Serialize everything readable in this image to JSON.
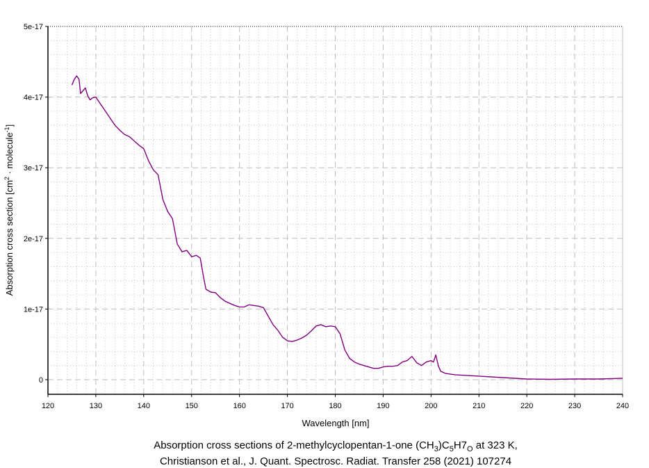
{
  "chart_data": {
    "type": "line",
    "title_line1": [
      "Absorption cross sections of 2-methylcyclopentan-1-one (CH",
      "3",
      ")C",
      "5",
      "H7",
      "O",
      " at 323 K,"
    ],
    "title_line2": "Christianson et al., J. Quant. Spectrosc. Radiat. Transfer 258 (2021) 107274",
    "xlabel": "Wavelength [nm]",
    "ylabel_parts": [
      "Absorption cross section [cm",
      "2",
      " · molecule",
      "-1",
      "]"
    ],
    "xlim": [
      120,
      240
    ],
    "ylim": [
      -2e-18,
      5e-17
    ],
    "xticks": [
      120,
      130,
      140,
      150,
      160,
      170,
      180,
      190,
      200,
      210,
      220,
      230,
      240
    ],
    "xtick_labels": [
      "120",
      "130",
      "140",
      "150",
      "160",
      "170",
      "180",
      "190",
      "200",
      "210",
      "220",
      "230",
      "240"
    ],
    "yticks": [
      0,
      1e-17,
      2e-17,
      3e-17,
      4e-17,
      5e-17
    ],
    "ytick_labels": [
      "0",
      "1e-17",
      "2e-17",
      "3e-17",
      "4e-17",
      "5e-17"
    ],
    "grid": true,
    "line_color": "#800080",
    "series": [
      {
        "name": "2-methylcyclopentan-1-one 323 K",
        "x": [
          125.0,
          125.5,
          126.0,
          126.5,
          126.8,
          127.2,
          127.8,
          128.3,
          128.8,
          129.3,
          130,
          131,
          132,
          133,
          134,
          135,
          136,
          137,
          138,
          139,
          140,
          141,
          142,
          143,
          144,
          145,
          146,
          147,
          148,
          149,
          150,
          151,
          151.8,
          152.5,
          153,
          154,
          155,
          156,
          157,
          158,
          159,
          160,
          161,
          162,
          163,
          164,
          165,
          166,
          167,
          168,
          169,
          170,
          171,
          172,
          173,
          174,
          175,
          176,
          177,
          178,
          179,
          180,
          181,
          182,
          183,
          184,
          185,
          186,
          187,
          188,
          189,
          190,
          191,
          192,
          193,
          194,
          195,
          196,
          197,
          198,
          199,
          200,
          200.5,
          201,
          201.5,
          202,
          203,
          205,
          210,
          215,
          220,
          225,
          230,
          235,
          240
        ],
        "y": [
          4.17e-17,
          4.25e-17,
          4.3e-17,
          4.25e-17,
          4.05e-17,
          4.08e-17,
          4.13e-17,
          4.02e-17,
          3.96e-17,
          3.99e-17,
          4e-17,
          3.9e-17,
          3.8e-17,
          3.7e-17,
          3.6e-17,
          3.53e-17,
          3.47e-17,
          3.44e-17,
          3.38e-17,
          3.32e-17,
          3.27e-17,
          3.1e-17,
          2.97e-17,
          2.9e-17,
          2.55e-17,
          2.38e-17,
          2.28e-17,
          1.92e-17,
          1.81e-17,
          1.83e-17,
          1.74e-17,
          1.76e-17,
          1.72e-17,
          1.45e-17,
          1.28e-17,
          1.24e-17,
          1.23e-17,
          1.16e-17,
          1.11e-17,
          1.08e-17,
          1.05e-17,
          1.03e-17,
          1.03e-17,
          1.06e-17,
          1.05e-17,
          1.04e-17,
          1.02e-17,
          9e-18,
          7.8e-18,
          7e-18,
          6e-18,
          5.5e-18,
          5.4e-18,
          5.6e-18,
          5.9e-18,
          6.3e-18,
          6.9e-18,
          7.6e-18,
          7.8e-18,
          7.5e-18,
          7.6e-18,
          7.5e-18,
          6.5e-18,
          4.2e-18,
          3e-18,
          2.5e-18,
          2.2e-18,
          2e-18,
          1.8e-18,
          1.6e-18,
          1.6e-18,
          1.8e-18,
          1.9e-18,
          1.9e-18,
          2e-18,
          2.5e-18,
          2.7e-18,
          3.3e-18,
          2.4e-18,
          2e-18,
          2.5e-18,
          2.7e-18,
          2.5e-18,
          3.5e-18,
          2e-18,
          1.2e-18,
          9e-19,
          7e-19,
          5e-19,
          3e-19,
          1e-19,
          5e-20,
          1e-19,
          1e-19,
          2e-19
        ]
      }
    ]
  }
}
